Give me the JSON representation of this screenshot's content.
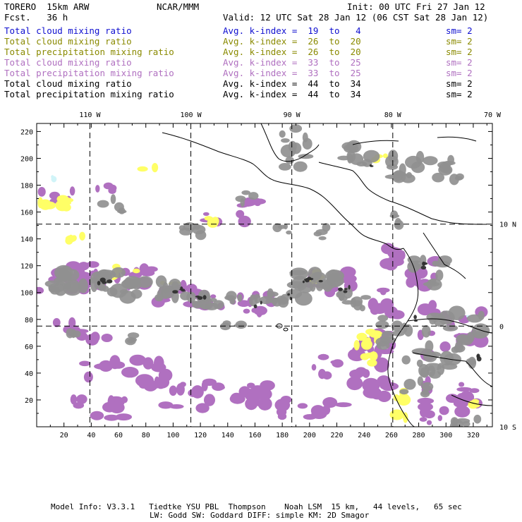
{
  "header": {
    "model": "TORERO  15km ARW",
    "forecast": "Fcst.   36 h",
    "org": "NCAR/MMM",
    "init": "Init: 00 UTC Fri 27 Jan 12",
    "valid": "Valid: 12 UTC Sat 28 Jan 12 (06 CST Sat 28 Jan 12)"
  },
  "legend": [
    {
      "field": "Total cloud mixing ratio",
      "kindex": "Avg. k-index =  19  to   4",
      "sm": "sm= 2",
      "color": "#1010d0"
    },
    {
      "field": "Total cloud mixing ratio",
      "kindex": "Avg. k-index =  26  to  20",
      "sm": "sm= 2",
      "color": "#8a8a00"
    },
    {
      "field": "Total precipitation mixing ratio",
      "kindex": "Avg. k-index =  26  to  20",
      "sm": "sm= 2",
      "color": "#8a8a00"
    },
    {
      "field": "Total cloud mixing ratio",
      "kindex": "Avg. k-index =  33  to  25",
      "sm": "sm= 2",
      "color": "#b070c0"
    },
    {
      "field": "Total precipitation mixing ratio",
      "kindex": "Avg. k-index =  33  to  25",
      "sm": "sm= 2",
      "color": "#b070c0"
    },
    {
      "field": "Total cloud mixing ratio",
      "kindex": "Avg. k-index =  44  to  34",
      "sm": "sm= 2",
      "color": "#000000"
    },
    {
      "field": "Total precipitation mixing ratio",
      "kindex": "Avg. k-index =  44  to  34",
      "sm": "sm= 2",
      "color": "#000000"
    }
  ],
  "axes": {
    "lon_labels": [
      "110 W",
      "100 W",
      "90 W",
      "80 W",
      "70 W"
    ],
    "lat_labels": [
      "10 N",
      "0",
      "10 S"
    ],
    "x_ticks": [
      "20",
      "40",
      "60",
      "80",
      "100",
      "120",
      "140",
      "160",
      "180",
      "200",
      "220",
      "240",
      "260",
      "280",
      "300",
      "320"
    ],
    "y_ticks": [
      "220",
      "200",
      "180",
      "160",
      "140",
      "120",
      "100",
      "80",
      "60",
      "40",
      "20"
    ],
    "x_range": [
      0,
      334
    ],
    "y_range": [
      0,
      226
    ]
  },
  "colors": {
    "purple": "#b070c0",
    "gray": "#909090",
    "dark": "#303030",
    "yellow": "#ffff66",
    "cyan": "#d0f4f8"
  },
  "footer": {
    "line1": "Model Info: V3.3.1   Tiedtke YSU PBL  Thompson    Noah LSM  15 km,   44 levels,   65 sec",
    "line2": "LW: Godd SW: Goddard DIFF: simple KM: 2D Smagor"
  }
}
